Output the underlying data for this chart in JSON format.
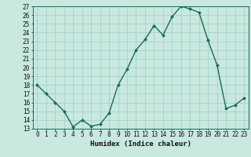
{
  "x": [
    0,
    1,
    2,
    3,
    4,
    5,
    6,
    7,
    8,
    9,
    10,
    11,
    12,
    13,
    14,
    15,
    16,
    17,
    18,
    19,
    20,
    21,
    22,
    23
  ],
  "y": [
    18,
    17,
    16,
    15,
    13.2,
    14,
    13.3,
    13.5,
    14.8,
    18,
    19.8,
    22,
    23.2,
    24.8,
    23.7,
    25.8,
    27,
    26.7,
    26.3,
    23.1,
    20.3,
    15.3,
    15.7,
    16.5
  ],
  "line_color": "#1a6b5a",
  "marker_color": "#1a6b5a",
  "bg_color": "#c8e8e0",
  "grid_color": "#9ecec6",
  "xlabel": "Humidex (Indice chaleur)",
  "ylim": [
    13,
    27
  ],
  "xlim": [
    -0.5,
    23.5
  ],
  "yticks": [
    13,
    14,
    15,
    16,
    17,
    18,
    19,
    20,
    21,
    22,
    23,
    24,
    25,
    26,
    27
  ],
  "xticks": [
    0,
    1,
    2,
    3,
    4,
    5,
    6,
    7,
    8,
    9,
    10,
    11,
    12,
    13,
    14,
    15,
    16,
    17,
    18,
    19,
    20,
    21,
    22,
    23
  ],
  "xlabel_fontsize": 6.5,
  "tick_fontsize": 5.5,
  "line_width": 1.0,
  "marker_size": 2.0
}
